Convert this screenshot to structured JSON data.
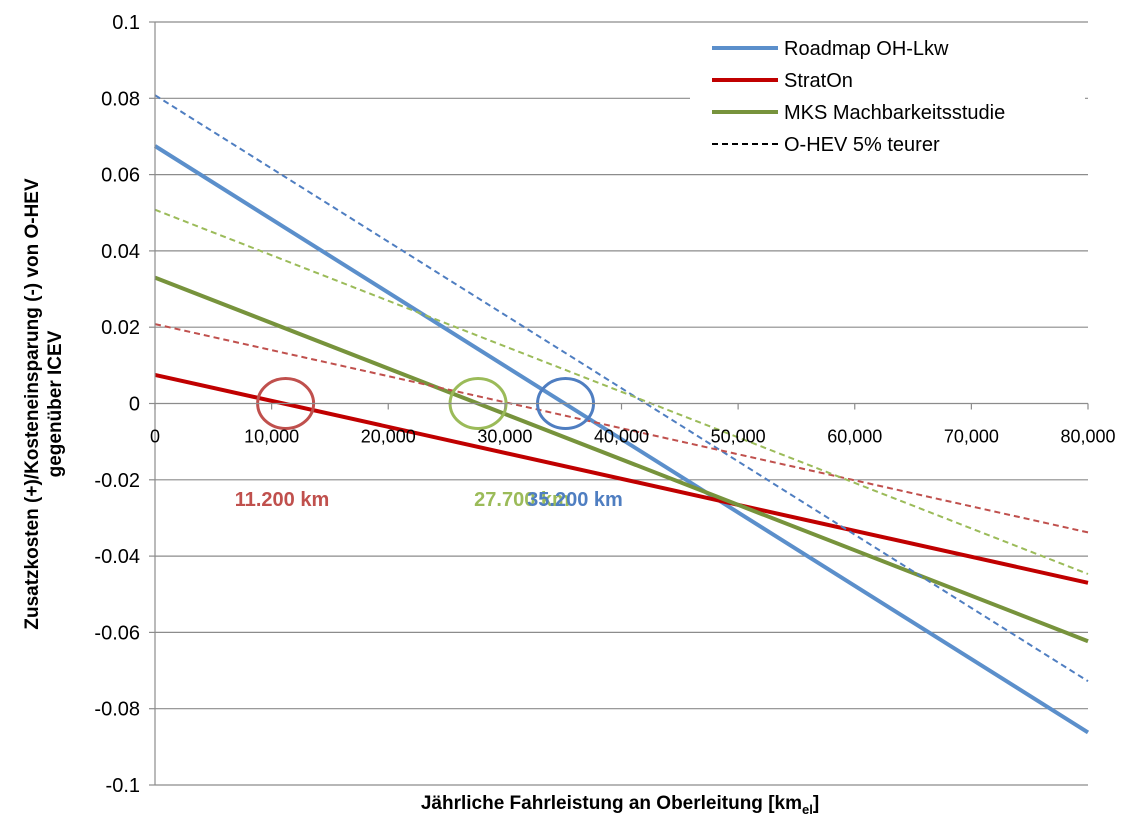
{
  "chart_data": {
    "type": "line",
    "xlabel": "Jährliche Fahrleistung an Oberleitung [km",
    "xlabel_sub": "el",
    "xlabel_end": "]",
    "ylabel_line1": "Zusatzkosten (+)/Kosteneinsparung (-) von O-HEV",
    "ylabel_line2": "gegenüber ICEV",
    "xlim": [
      0,
      80000
    ],
    "ylim": [
      -0.1,
      0.1
    ],
    "x_ticks": [
      0,
      10000,
      20000,
      30000,
      40000,
      50000,
      60000,
      70000,
      80000
    ],
    "x_tick_labels": [
      "0",
      "10,000",
      "20,000",
      "30,000",
      "40,000",
      "50,000",
      "60,000",
      "70,000",
      "80,000"
    ],
    "y_ticks": [
      0.1,
      0.08,
      0.06,
      0.04,
      0.02,
      0,
      -0.02,
      -0.04,
      -0.06,
      -0.08,
      -0.1
    ],
    "y_tick_labels": [
      "0.1",
      "0.08",
      "0.06",
      "0.04",
      "0.02",
      "0",
      "-0.02",
      "-0.04",
      "-0.06",
      "-0.08",
      "-0.1"
    ],
    "grid": "horizontal",
    "legend_position": "top-right",
    "series": [
      {
        "name": "Roadmap OH-Lkw",
        "color": "#5b8fcb",
        "dash": "solid",
        "x": [
          0,
          80000
        ],
        "y": [
          0.0675,
          -0.0862
        ]
      },
      {
        "name": "StratOn",
        "color": "#c00000",
        "dash": "solid",
        "x": [
          0,
          80000
        ],
        "y": [
          0.0075,
          -0.047
        ]
      },
      {
        "name": "MKS Machbarkeitsstudie",
        "color": "#77933c",
        "dash": "solid",
        "x": [
          0,
          80000
        ],
        "y": [
          0.033,
          -0.0623
        ]
      },
      {
        "name": "O-HEV 5% teurer",
        "color": "#000000",
        "dash": "dashed",
        "x": [],
        "y": []
      },
      {
        "name": "",
        "color": "#4f7ec1",
        "dash": "dashed",
        "x": [
          0,
          80000
        ],
        "y": [
          0.0808,
          -0.0728
        ]
      },
      {
        "name": "",
        "color": "#c0504d",
        "dash": "dashed",
        "x": [
          0,
          80000
        ],
        "y": [
          0.0208,
          -0.0338
        ]
      },
      {
        "name": "",
        "color": "#9bbb59",
        "dash": "dashed",
        "x": [
          0,
          80000
        ],
        "y": [
          0.0508,
          -0.0447
        ]
      }
    ],
    "annotations": [
      {
        "text": "11.200 km",
        "color": "#c0504d",
        "x": 11200,
        "circle_color": "#c0504d"
      },
      {
        "text": "27.700 km",
        "color": "#9bbb59",
        "x": 27700,
        "circle_color": "#9bbb59"
      },
      {
        "text": "35.200 km",
        "color": "#4f7ec1",
        "x": 35200,
        "circle_color": "#4f7ec1"
      }
    ]
  }
}
